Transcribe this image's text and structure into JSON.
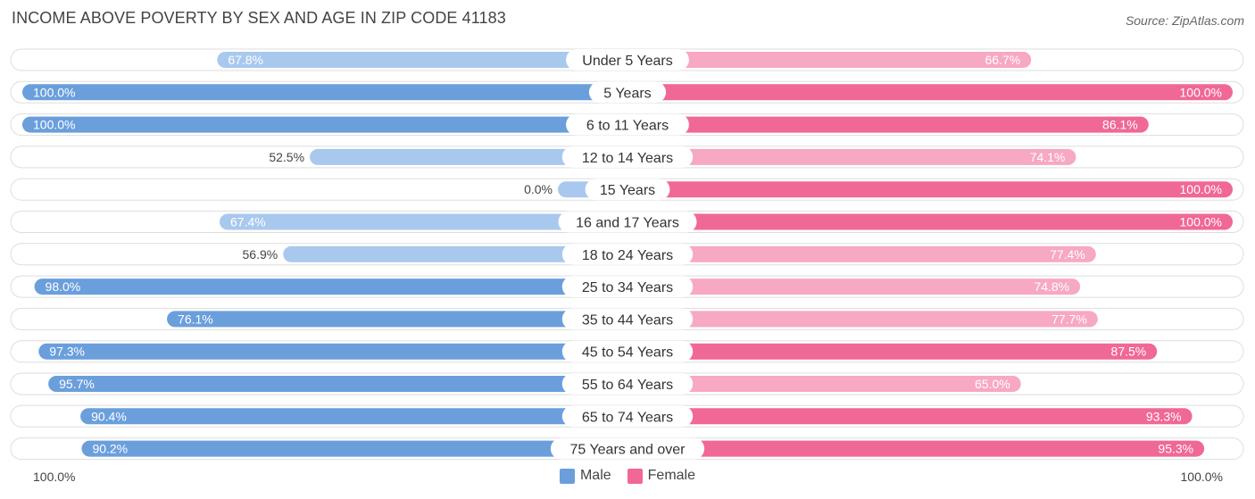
{
  "header": {
    "title": "INCOME ABOVE POVERTY BY SEX AND AGE IN ZIP CODE 41183",
    "source": "Source: ZipAtlas.com"
  },
  "axis": {
    "left_label": "100.0%",
    "right_label": "100.0%"
  },
  "legend": {
    "male": "Male",
    "female": "Female"
  },
  "colors": {
    "male_strong": "#6a9fdc",
    "male_light": "#a9c8ee",
    "female_strong": "#f06895",
    "female_light": "#f7a8c3",
    "track": "#efefef"
  },
  "chart_data": {
    "type": "bar",
    "title": "INCOME ABOVE POVERTY BY SEX AND AGE IN ZIP CODE 41183",
    "orientation": "horizontal-diverging",
    "categories": [
      "Under 5 Years",
      "5 Years",
      "6 to 11 Years",
      "12 to 14 Years",
      "15 Years",
      "16 and 17 Years",
      "18 to 24 Years",
      "25 to 34 Years",
      "35 to 44 Years",
      "45 to 54 Years",
      "55 to 64 Years",
      "65 to 74 Years",
      "75 Years and over"
    ],
    "series": [
      {
        "name": "Male",
        "values": [
          67.8,
          100.0,
          100.0,
          52.5,
          0.0,
          67.4,
          56.9,
          98.0,
          76.1,
          97.3,
          95.7,
          90.4,
          90.2
        ]
      },
      {
        "name": "Female",
        "values": [
          66.7,
          100.0,
          86.1,
          74.1,
          100.0,
          100.0,
          77.4,
          74.8,
          77.7,
          87.5,
          65.0,
          93.3,
          95.3
        ]
      }
    ],
    "value_labels": {
      "male": [
        "67.8%",
        "100.0%",
        "100.0%",
        "52.5%",
        "0.0%",
        "67.4%",
        "56.9%",
        "98.0%",
        "76.1%",
        "97.3%",
        "95.7%",
        "90.4%",
        "90.2%"
      ],
      "female": [
        "66.7%",
        "100.0%",
        "86.1%",
        "74.1%",
        "100.0%",
        "100.0%",
        "77.4%",
        "74.8%",
        "77.7%",
        "87.5%",
        "65.0%",
        "93.3%",
        "95.3%"
      ]
    },
    "xlim": [
      -100,
      100
    ],
    "legend_position": "bottom-center"
  }
}
